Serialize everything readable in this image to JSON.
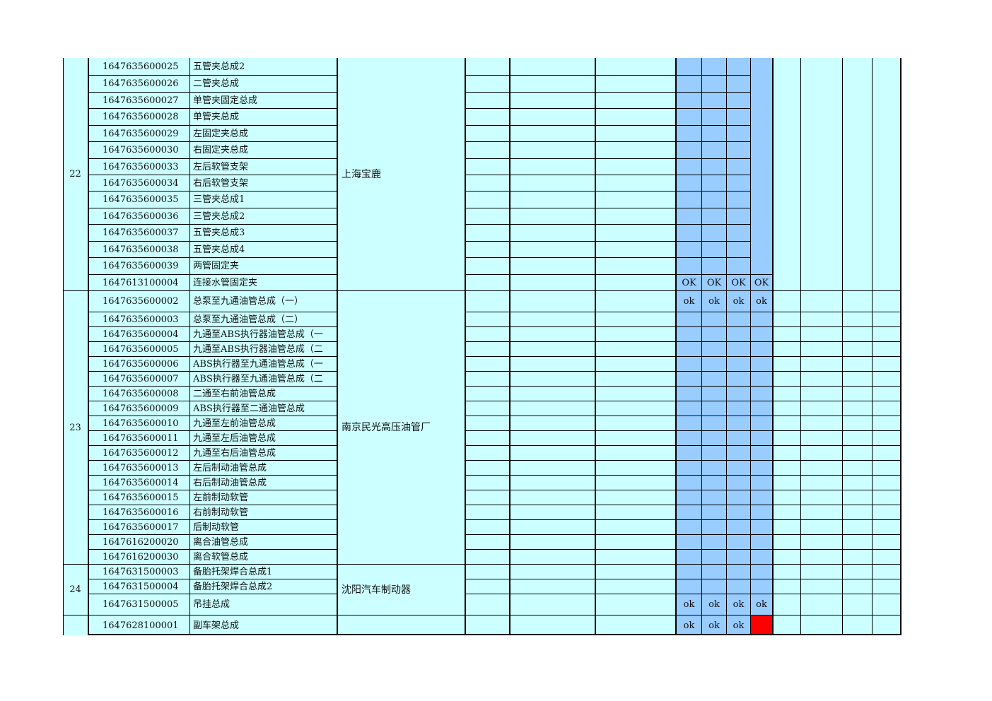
{
  "status_colors": {
    "sheet": "#ccffff",
    "status_blue": "#99ccff",
    "alert_red": "#ff0000"
  },
  "groups": [
    {
      "no": "22",
      "supplier": "上海宝鹿",
      "parts": [
        {
          "code": "1647635600025",
          "name": "五管夹总成2",
          "status": [
            "",
            "",
            "",
            ""
          ]
        },
        {
          "code": "1647635600026",
          "name": "二管夹总成",
          "status": [
            "",
            "",
            "",
            ""
          ]
        },
        {
          "code": "1647635600027",
          "name": "单管夹固定总成",
          "status": [
            "",
            "",
            "",
            ""
          ]
        },
        {
          "code": "1647635600028",
          "name": "单管夹总成",
          "status": [
            "",
            "",
            "",
            ""
          ]
        },
        {
          "code": "1647635600029",
          "name": "左固定夹总成",
          "status": [
            "",
            "",
            "",
            ""
          ]
        },
        {
          "code": "1647635600030",
          "name": "右固定夹总成",
          "status": [
            "",
            "",
            "",
            ""
          ]
        },
        {
          "code": "1647635600033",
          "name": "左后软管支架",
          "status": [
            "",
            "",
            "",
            ""
          ]
        },
        {
          "code": "1647635600034",
          "name": "右后软管支架",
          "status": [
            "",
            "",
            "",
            ""
          ]
        },
        {
          "code": "1647635600035",
          "name": "三管夹总成1",
          "status": [
            "",
            "",
            "",
            ""
          ]
        },
        {
          "code": "1647635600036",
          "name": "三管夹总成2",
          "status": [
            "",
            "",
            "",
            ""
          ]
        },
        {
          "code": "1647635600037",
          "name": "五管夹总成3",
          "status": [
            "",
            "",
            "",
            ""
          ]
        },
        {
          "code": "1647635600038",
          "name": "五管夹总成4",
          "status": [
            "",
            "",
            "",
            ""
          ]
        },
        {
          "code": "1647635600039",
          "name": "两管固定夹",
          "status": [
            "",
            "",
            "",
            ""
          ]
        },
        {
          "code": "1647613100004",
          "name": "连接水管固定夹",
          "status": [
            "OK",
            "OK",
            "OK",
            "OK"
          ]
        }
      ]
    },
    {
      "no": "23",
      "supplier": "南京民光高压油管厂",
      "parts": [
        {
          "code": "1647635600002",
          "name": "总泵至九通油管总成（一）",
          "status": [
            "ok",
            "ok",
            "ok",
            "ok"
          ]
        },
        {
          "code": "1647635600003",
          "name": "总泵至九通油管总成（二）",
          "status": [
            "",
            "",
            "",
            ""
          ]
        },
        {
          "code": "1647635600004",
          "name": "九通至ABS执行器油管总成（一",
          "status": [
            "",
            "",
            "",
            ""
          ]
        },
        {
          "code": "1647635600005",
          "name": "九通至ABS执行器油管总成（二",
          "status": [
            "",
            "",
            "",
            ""
          ]
        },
        {
          "code": "1647635600006",
          "name": "ABS执行器至九通油管总成（一",
          "status": [
            "",
            "",
            "",
            ""
          ]
        },
        {
          "code": "1647635600007",
          "name": "ABS执行器至九通油管总成（二",
          "status": [
            "",
            "",
            "",
            ""
          ]
        },
        {
          "code": "1647635600008",
          "name": "二通至右前油管总成",
          "status": [
            "",
            "",
            "",
            ""
          ]
        },
        {
          "code": "1647635600009",
          "name": "ABS执行器至二通油管总成",
          "status": [
            "",
            "",
            "",
            ""
          ]
        },
        {
          "code": "1647635600010",
          "name": "九通至左前油管总成",
          "status": [
            "",
            "",
            "",
            ""
          ]
        },
        {
          "code": "1647635600011",
          "name": "九通至左后油管总成",
          "status": [
            "",
            "",
            "",
            ""
          ]
        },
        {
          "code": "1647635600012",
          "name": "九通至右后油管总成",
          "status": [
            "",
            "",
            "",
            ""
          ]
        },
        {
          "code": "1647635600013",
          "name": "左后制动油管总成",
          "status": [
            "",
            "",
            "",
            ""
          ]
        },
        {
          "code": "1647635600014",
          "name": "右后制动油管总成",
          "status": [
            "",
            "",
            "",
            ""
          ]
        },
        {
          "code": "1647635600015",
          "name": "左前制动软管",
          "status": [
            "",
            "",
            "",
            ""
          ]
        },
        {
          "code": "1647635600016",
          "name": "右前制动软管",
          "status": [
            "",
            "",
            "",
            ""
          ]
        },
        {
          "code": "1647635600017",
          "name": "后制动软管",
          "status": [
            "",
            "",
            "",
            ""
          ]
        },
        {
          "code": "1647616200020",
          "name": "离合油管总成",
          "status": [
            "",
            "",
            "",
            ""
          ]
        },
        {
          "code": "1647616200030",
          "name": "离合软管总成",
          "status": [
            "",
            "",
            "",
            ""
          ]
        }
      ]
    },
    {
      "no": "24",
      "supplier": "沈阳汽车制动器",
      "parts": [
        {
          "code": "1647631500003",
          "name": "备胎托架焊合总成1",
          "status": [
            "",
            "",
            "",
            ""
          ]
        },
        {
          "code": "1647631500004",
          "name": "备胎托架焊合总成2",
          "status": [
            "",
            "",
            "",
            ""
          ]
        },
        {
          "code": "1647631500005",
          "name": "吊挂总成",
          "status": [
            "ok",
            "ok",
            "ok",
            "ok"
          ]
        }
      ]
    },
    {
      "no": "",
      "supplier": "",
      "parts": [
        {
          "code": "1647628100001",
          "name": "副车架总成",
          "status": [
            "ok",
            "ok",
            "ok",
            "red"
          ]
        }
      ]
    }
  ]
}
